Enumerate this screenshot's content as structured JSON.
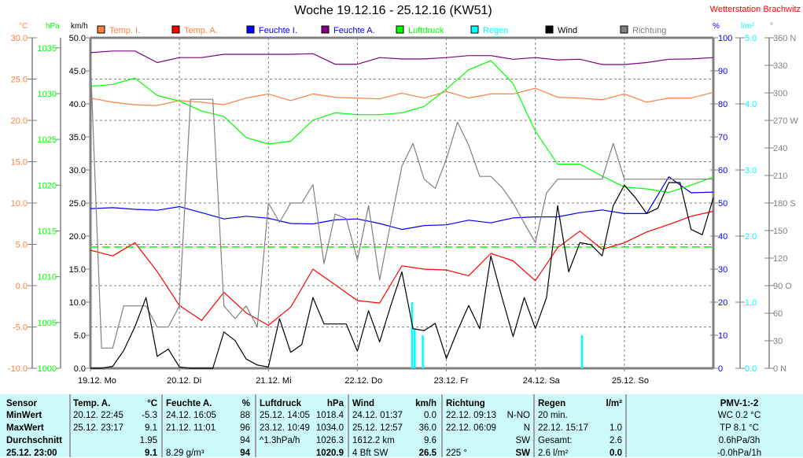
{
  "header": {
    "title": "Woche 19.12.16 - 25.12.16 (KW51)",
    "station": "Wetterstation Brachwitz"
  },
  "legend": [
    {
      "label": "Temp. I.",
      "color": "#ff8040",
      "text_color": "#ff8040"
    },
    {
      "label": "Temp. A.",
      "color": "#ff0000",
      "text_color": "#ff8040"
    },
    {
      "label": "Feuchte I.",
      "color": "#0000ff",
      "text_color": "#0000ff"
    },
    {
      "label": "Feuchte A.",
      "color": "#800080",
      "text_color": "#0000ff"
    },
    {
      "label": "Luftdruck",
      "color": "#00ff00",
      "text_color": "#00ff00"
    },
    {
      "label": "Regen",
      "color": "#00ffff",
      "text_color": "#00ffff"
    },
    {
      "label": "Wind",
      "color": "#000000",
      "text_color": "#000000"
    },
    {
      "label": "Richtung",
      "color": "#808080",
      "text_color": "#808080"
    }
  ],
  "chart_data": {
    "type": "line",
    "title": "Woche 19.12.16 - 25.12.16 (KW51)",
    "x_unit": "hours since 19.12. 00:00",
    "x_range": [
      0,
      168
    ],
    "x_tick_labels": [
      "19.12. Mo",
      "20.12. Di",
      "21.12. Mi",
      "22.12. Do",
      "23.12. Fr",
      "24.12. Sa",
      "25.12. So"
    ],
    "grid": true,
    "axes": {
      "temp": {
        "unit": "°C",
        "color": "#ff8040",
        "range": [
          -10,
          30
        ],
        "values": [
          30,
          25,
          20,
          15,
          10,
          5,
          0,
          -5,
          -10
        ],
        "labels": [
          "30.0",
          "25.0",
          "20.0",
          "15.0",
          "10.0",
          "5.0",
          "0.0",
          "-5.0",
          "-10.0"
        ]
      },
      "pressure": {
        "unit": "hPa",
        "color": "#00ff00",
        "range": [
          1000,
          1036.1
        ],
        "values": [
          1035,
          1030,
          1025,
          1020,
          1015,
          1010,
          1005,
          1000
        ],
        "labels": [
          "1035",
          "1030",
          "1025",
          "1020",
          "1015",
          "1010",
          "1005",
          "1000"
        ]
      },
      "wind": {
        "unit": "km/h",
        "color": "#000000",
        "range": [
          0,
          50
        ],
        "values": [
          50,
          45,
          40,
          35,
          30,
          25,
          20,
          15,
          10,
          5,
          0
        ],
        "labels": [
          "50.0",
          "45.0",
          "40.0",
          "35.0",
          "30.0",
          "25.0",
          "20.0",
          "15.0",
          "10.0",
          "5.0",
          "0.0"
        ]
      },
      "humidity": {
        "unit": "%",
        "color": "#0000ff",
        "range": [
          0,
          100
        ],
        "values": [
          100,
          90,
          80,
          70,
          60,
          50,
          40,
          30,
          20,
          10,
          0
        ],
        "labels": [
          "100",
          "90",
          "80",
          "70",
          "60",
          "50",
          "40",
          "30",
          "20",
          "10",
          "0"
        ]
      },
      "rain": {
        "unit": "l/m²",
        "color": "#00ffff",
        "range": [
          0,
          5
        ],
        "values": [
          5,
          4,
          3,
          2,
          1,
          0
        ],
        "labels": [
          "5.0",
          "4.0",
          "3.0",
          "2.0",
          "1.0",
          "0.0"
        ]
      },
      "direction": {
        "unit": "°",
        "color": "#808080",
        "range": [
          0,
          360
        ],
        "values": [
          360,
          330,
          300,
          270,
          240,
          210,
          180,
          150,
          120,
          90,
          60,
          30,
          0
        ],
        "labels": [
          "360 N",
          "330",
          "300",
          "270 W",
          "240",
          "210",
          "180 S",
          "150",
          "120",
          "90  O",
          "60",
          "30",
          "0  N"
        ]
      }
    },
    "reference_line": {
      "axis": "pressure",
      "value": 1013.25,
      "color": "#00ff00"
    },
    "series": [
      {
        "name": "Temp. I.",
        "axis": "temp",
        "color": "#ff8040",
        "step_hours": 6,
        "values": [
          22.7,
          22.2,
          21.9,
          21.8,
          22.4,
          22.2,
          21.9,
          22.7,
          23.2,
          22.4,
          23.2,
          22.8,
          22.7,
          22.6,
          23.3,
          22.7,
          23.5,
          22.7,
          23.2,
          23.2,
          23.9,
          22.8,
          22.7,
          22.5,
          23.2,
          22.2,
          22.7,
          22.7,
          23.4
        ]
      },
      {
        "name": "Temp. A.",
        "axis": "temp",
        "color": "#ff0000",
        "step_hours": 6,
        "values": [
          4.3,
          3.6,
          5.2,
          1.7,
          -2.4,
          -4.2,
          -0.8,
          -3.3,
          -4.8,
          -2.6,
          2.0,
          0.1,
          -1.8,
          -2.1,
          2.4,
          2.0,
          1.9,
          1.2,
          3.9,
          3.0,
          0.6,
          4.6,
          6.6,
          4.4,
          5.2,
          6.5,
          7.4,
          8.4,
          9.0
        ]
      },
      {
        "name": "Feuchte I.",
        "axis": "humidity",
        "color": "#0000ff",
        "step_hours": 6,
        "values": [
          48.3,
          48.6,
          48.1,
          47.8,
          48.9,
          47.1,
          45.2,
          46.0,
          45.4,
          43.8,
          43.7,
          44.9,
          45.2,
          43.8,
          42.0,
          43.2,
          43.4,
          44.8,
          44.0,
          45.5,
          45.8,
          45.8,
          47.1,
          47.9,
          46.8,
          46.8,
          57.9,
          53.1,
          53.3
        ]
      },
      {
        "name": "Feuchte A.",
        "axis": "humidity",
        "color": "#800080",
        "step_hours": 6,
        "values": [
          95.5,
          96,
          96,
          92.5,
          94,
          94,
          95,
          95,
          95,
          95,
          95.2,
          92,
          92,
          94,
          93.6,
          93.6,
          94,
          94.6,
          94.6,
          93.5,
          94,
          93.3,
          93.5,
          91.9,
          91.9,
          92.5,
          93.5,
          93.6,
          94
        ]
      },
      {
        "name": "Luftdruck",
        "axis": "pressure",
        "color": "#00ff00",
        "step_hours": 6,
        "values": [
          1030.8,
          1031.0,
          1031.7,
          1029.8,
          1029.2,
          1028.1,
          1027.5,
          1025.2,
          1024.5,
          1024.8,
          1027.1,
          1027.9,
          1027.7,
          1027.7,
          1027.9,
          1028.6,
          1030.5,
          1032.6,
          1033.6,
          1031.1,
          1025.9,
          1022.3,
          1022.3,
          1021.0,
          1019.8,
          1019.6,
          1019.2,
          1020.0,
          1020.9
        ]
      },
      {
        "name": "Richtung",
        "axis": "direction",
        "color": "#808080",
        "step_hours": 3,
        "values": [
          337,
          22,
          22,
          68,
          68,
          68,
          45,
          45,
          68,
          293,
          293,
          293,
          68,
          54,
          68,
          45,
          180,
          159,
          180,
          180,
          200,
          114,
          168,
          163,
          118,
          177,
          96,
          159,
          220,
          245,
          206,
          196,
          228,
          268,
          243,
          209,
          209,
          197,
          180,
          158,
          137,
          191,
          206,
          206,
          206,
          206,
          206,
          245,
          206,
          206,
          206,
          206,
          206,
          206,
          206,
          206,
          206
        ]
      },
      {
        "name": "Wind",
        "axis": "wind",
        "color": "#000000",
        "step_hours": 3,
        "values": [
          0,
          0,
          0.3,
          2.7,
          6.3,
          10.7,
          1.8,
          2.9,
          0.2,
          0,
          0,
          0,
          5.5,
          4.2,
          1.4,
          0.5,
          0.2,
          7.5,
          2.4,
          3.6,
          10.7,
          6.7,
          6.7,
          6.7,
          2.6,
          8.7,
          4.0,
          9.5,
          14.6,
          6.0,
          5.7,
          6.8,
          1.5,
          5.7,
          9.5,
          6.0,
          17.0,
          10.7,
          4.8,
          10.7,
          6.0,
          10.7,
          24.6,
          14.6,
          19.0,
          18.7,
          17.0,
          24.6,
          27.7,
          25.8,
          23.4,
          24.2,
          28.1,
          28.1,
          21.0,
          20.2,
          25.8
        ]
      }
    ],
    "rain_bars": {
      "name": "Regen",
      "axis": "rain",
      "color": "#00ffff",
      "hours": [
        86.7,
        87.4,
        89.6,
        132.5
      ],
      "values": [
        1.0,
        0.6,
        0.5,
        0.5
      ]
    }
  },
  "table": {
    "row_labels": [
      "Sensor",
      "MinWert",
      "MaxWert",
      "Durchschnitt",
      "25.12. 23:00"
    ],
    "columns": [
      {
        "header": "Temp. A.",
        "unit": "°C",
        "left": [
          "20.12.  22:45",
          "25.12.  23:17",
          "",
          ""
        ],
        "right": [
          "-5.3",
          "9.1",
          "1.95",
          "9.1"
        ]
      },
      {
        "header": "Feuchte A.",
        "unit": "%",
        "left": [
          "24.12.  16:05",
          "21.12.  11:01",
          "",
          "8.29 g/m³"
        ],
        "right": [
          "88",
          "96",
          "94",
          "94"
        ]
      },
      {
        "header": "Luftdruck",
        "unit": "hPa",
        "left": [
          "25.12.  14:05",
          "23.12.  10:49",
          "^1.3hPa/h",
          ""
        ],
        "right": [
          "1018.4",
          "1034.0",
          "1026.3",
          "1020.9"
        ]
      },
      {
        "header": "Wind",
        "unit": "km/h",
        "left": [
          "24.12.  01:37",
          "25.12.  12:57",
          "1612.2 km",
          "4 Bft SW"
        ],
        "right": [
          "0.0",
          "36.0",
          "9.6",
          "26.5"
        ]
      },
      {
        "header": "Richtung",
        "unit": "",
        "left": [
          "22.12.  09:13",
          "22.12.  06:09",
          "",
          "225 °"
        ],
        "right": [
          "N-NO",
          "N",
          "SW",
          "SW"
        ]
      },
      {
        "header": "Regen",
        "unit": "l/m²",
        "left": [
          "20 min.",
          "22.12.  15:17",
          "Gesamt:",
          "2.6 l/m²"
        ],
        "right": [
          "",
          "1.0",
          "2.6",
          "0.0"
        ]
      }
    ],
    "pmv": {
      "header": "PMV-1:-2",
      "lines": [
        "WC 0.2 °C",
        "TP 8.1 °C",
        "0.6hPa/3h",
        "-0.0hPa/1h"
      ]
    }
  }
}
